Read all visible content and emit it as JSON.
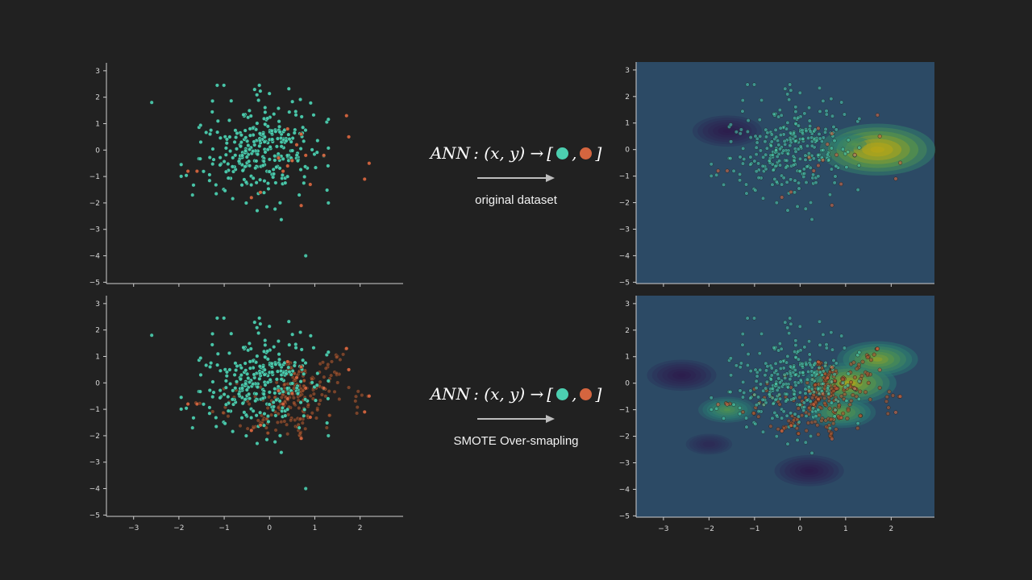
{
  "colors": {
    "background": "#212121",
    "majority_class": "#4ccfb0",
    "minority_class": "#d5653f",
    "synthetic_class": "#a8562f",
    "axis": "#cfcfcf",
    "contour_low": "#2d1e4d",
    "contour_mid": "#2a7a73",
    "contour_high": "#b8a615"
  },
  "panel_rows": [
    {
      "formula": {
        "lhs": "ANN",
        "args": ": (x, y) →",
        "open": "[",
        "sep": ",",
        "close": "]"
      },
      "caption": "original dataset"
    },
    {
      "formula": {
        "lhs": "ANN",
        "args": ": (x, y) →",
        "open": "[",
        "sep": ",",
        "close": "]"
      },
      "caption": "SMOTE Over-smapling"
    }
  ],
  "chart_data": [
    {
      "type": "scatter",
      "panel": "top-left",
      "xlim": [
        -3.6,
        2.95
      ],
      "ylim": [
        -5.05,
        3.3
      ],
      "x_ticks": [
        "-3",
        "-2",
        "-1",
        "0",
        "1",
        "2"
      ],
      "x_tick_labels_shown": false,
      "y_ticks": [
        "3",
        "2",
        "1",
        "0",
        "−1",
        "−2",
        "−3",
        "−4",
        "−5"
      ],
      "series": [
        {
          "class": "majority",
          "count": 300,
          "distribution": "gaussian",
          "center": [
            -0.2,
            0.0
          ],
          "spread": [
            0.65,
            0.95
          ]
        },
        {
          "class": "minority",
          "points": [
            [
              0.7,
              0.6
            ],
            [
              0.6,
              0.2
            ],
            [
              0.8,
              -0.2
            ],
            [
              1.2,
              -0.2
            ],
            [
              0.5,
              -0.4
            ],
            [
              0.4,
              -0.6
            ],
            [
              0.3,
              -0.8
            ],
            [
              0.9,
              -1.3
            ],
            [
              -0.4,
              -1.8
            ],
            [
              -0.2,
              -1.6
            ],
            [
              0.7,
              -2.1
            ],
            [
              1.7,
              1.3
            ],
            [
              1.75,
              0.5
            ],
            [
              2.1,
              -1.1
            ],
            [
              2.2,
              -0.5
            ],
            [
              -1.6,
              -0.8
            ],
            [
              -1.8,
              -0.8
            ],
            [
              0.4,
              0.8
            ],
            [
              0.2,
              -0.3
            ]
          ]
        }
      ],
      "outliers": [
        [
          -2.6,
          1.8
        ],
        [
          0.8,
          -4.0
        ],
        [
          1.3,
          -2.0
        ],
        [
          -1.7,
          -1.7
        ]
      ],
      "grid": false
    },
    {
      "type": "scatter",
      "panel": "bottom-left",
      "xlim": [
        -3.6,
        2.95
      ],
      "ylim": [
        -5.05,
        3.3
      ],
      "x_ticks": [
        "−3",
        "−2",
        "−1",
        "0",
        "1",
        "2"
      ],
      "y_ticks": [
        "3",
        "2",
        "1",
        "0",
        "−1",
        "−2",
        "−3",
        "−4",
        "−5"
      ],
      "series": [
        {
          "class": "majority",
          "count": 300,
          "distribution": "gaussian",
          "center": [
            -0.2,
            0.0
          ],
          "spread": [
            0.65,
            0.95
          ]
        },
        {
          "class": "minority-smote",
          "count": 300,
          "distribution": "interpolated",
          "source": "minority points of top-left panel"
        }
      ],
      "outliers": [
        [
          -2.6,
          1.8
        ],
        [
          0.8,
          -4.0
        ],
        [
          1.3,
          -2.0
        ],
        [
          -1.7,
          -1.7
        ]
      ],
      "grid": false
    },
    {
      "type": "heatmap",
      "panel": "top-right",
      "xlim": [
        -3.6,
        2.95
      ],
      "ylim": [
        -5.05,
        3.3
      ],
      "x_ticks": [
        "-3",
        "-2",
        "-1",
        "0",
        "1",
        "2"
      ],
      "x_tick_labels_shown": false,
      "y_ticks": [
        "3",
        "2",
        "1",
        "0",
        "−1",
        "−2",
        "−3",
        "−4",
        "−5"
      ],
      "surface": "decision contour (few bumps, peak near x=1.7, y=0)",
      "peaks": [
        [
          1.7,
          0.0,
          1.0
        ],
        [
          1.2,
          0.2,
          0.5
        ],
        [
          -1.6,
          0.7,
          -0.6
        ]
      ],
      "overlay": "scatter as top-left panel",
      "grid": false
    },
    {
      "type": "heatmap",
      "panel": "bottom-right",
      "xlim": [
        -3.6,
        2.95
      ],
      "ylim": [
        -5.05,
        3.3
      ],
      "x_ticks": [
        "−3",
        "−2",
        "−1",
        "0",
        "1",
        "2"
      ],
      "y_ticks": [
        "3",
        "2",
        "1",
        "0",
        "−1",
        "−2",
        "−3",
        "−4",
        "−5"
      ],
      "surface": "decision contour (many bumps after SMOTE)",
      "peaks": [
        [
          1.1,
          0.0,
          0.8
        ],
        [
          1.7,
          0.9,
          0.7
        ],
        [
          0.9,
          -1.1,
          0.6
        ],
        [
          -1.6,
          -1.0,
          0.5
        ],
        [
          -2.6,
          0.3,
          -0.6
        ],
        [
          0.2,
          -3.3,
          -0.6
        ],
        [
          -2.0,
          -2.3,
          -0.4
        ]
      ],
      "overlay": "scatter as bottom-left panel",
      "grid": false
    }
  ]
}
